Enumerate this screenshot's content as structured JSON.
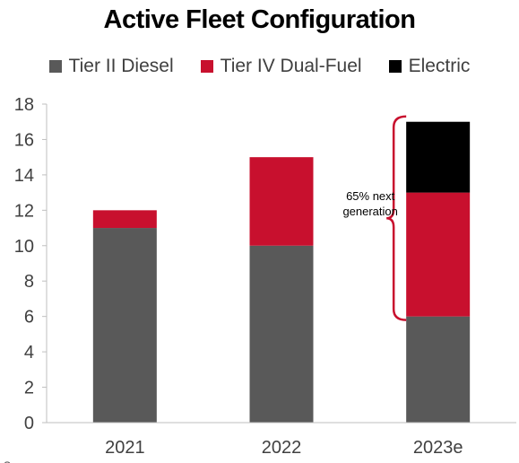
{
  "chart_data": {
    "type": "bar",
    "stacked": true,
    "title": "Active Fleet Configuration",
    "categories": [
      "2021",
      "2022",
      "2023e"
    ],
    "series": [
      {
        "name": "Tier II Diesel",
        "color": "#595959",
        "values": [
          11,
          10,
          6
        ]
      },
      {
        "name": "Tier IV Dual-Fuel",
        "color": "#c8102e",
        "values": [
          1,
          5,
          7
        ]
      },
      {
        "name": "Electric",
        "color": "#000000",
        "values": [
          0,
          0,
          4
        ]
      }
    ],
    "ylim": [
      0,
      18
    ],
    "yticks": [
      0,
      2,
      4,
      6,
      8,
      10,
      12,
      14,
      16,
      18
    ],
    "grid": false,
    "legend_position": "top",
    "annotation": {
      "text_line1": "65% next",
      "text_line2": "generation",
      "category": "2023e",
      "range": [
        6,
        17
      ],
      "color": "#c8102e"
    },
    "footnote": "Source:"
  }
}
